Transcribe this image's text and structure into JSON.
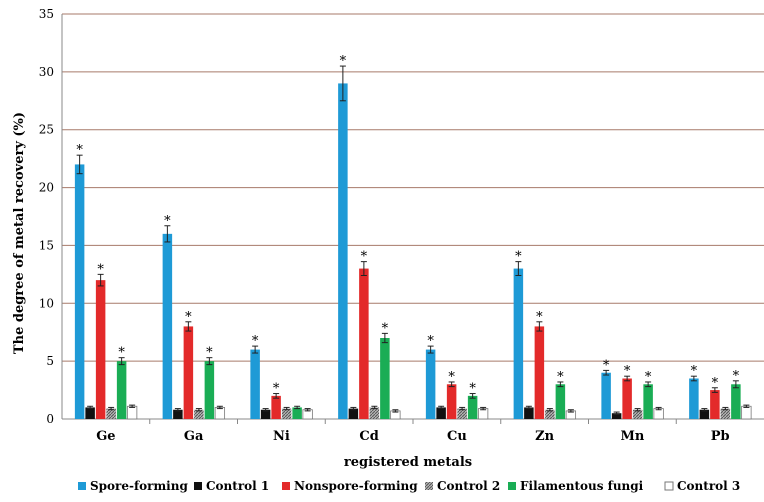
{
  "chart_data": {
    "type": "bar",
    "xlabel": "registered metals",
    "ylabel": "The degree of metal recovery (%)",
    "ylim": [
      0,
      35
    ],
    "yticks": [
      0,
      5,
      10,
      15,
      20,
      25,
      30,
      35
    ],
    "grid": true,
    "legend_position": "bottom",
    "categories": [
      "Ge",
      "Ga",
      "Ni",
      "Cd",
      "Cu",
      "Zn",
      "Mn",
      "Pb"
    ],
    "series": [
      {
        "name": "Spore-forming",
        "color": "#1e9ad6",
        "pattern": "solid",
        "values": [
          22,
          16,
          6,
          29,
          6,
          13,
          4,
          3.5
        ],
        "errors": [
          0.8,
          0.7,
          0.3,
          1.5,
          0.3,
          0.6,
          0.2,
          0.2
        ],
        "significant": [
          true,
          true,
          true,
          true,
          true,
          true,
          true,
          true
        ]
      },
      {
        "name": "Control 1",
        "color": "#111111",
        "pattern": "solid",
        "values": [
          1.0,
          0.8,
          0.8,
          0.9,
          1.0,
          1.0,
          0.5,
          0.8
        ],
        "errors": [
          0.1,
          0.1,
          0.1,
          0.1,
          0.1,
          0.1,
          0.1,
          0.1
        ],
        "significant": [
          false,
          false,
          false,
          false,
          false,
          false,
          false,
          false
        ]
      },
      {
        "name": "Nonspore-forming",
        "color": "#e32a2a",
        "pattern": "solid",
        "values": [
          12,
          8,
          2,
          13,
          3,
          8,
          3.5,
          2.5
        ],
        "errors": [
          0.5,
          0.4,
          0.2,
          0.6,
          0.2,
          0.4,
          0.2,
          0.2
        ],
        "significant": [
          true,
          true,
          true,
          true,
          true,
          true,
          true,
          true
        ]
      },
      {
        "name": "Control 2",
        "color": "#8c8c8c",
        "pattern": "hatched",
        "values": [
          0.9,
          0.8,
          0.9,
          1.0,
          0.9,
          0.8,
          0.8,
          0.9
        ],
        "errors": [
          0.1,
          0.1,
          0.1,
          0.1,
          0.1,
          0.1,
          0.1,
          0.1
        ],
        "significant": [
          false,
          false,
          false,
          false,
          false,
          false,
          false,
          false
        ]
      },
      {
        "name": "Filamentous fungi",
        "color": "#1aad55",
        "pattern": "solid",
        "values": [
          5,
          5,
          1,
          7,
          2,
          3,
          3,
          3
        ],
        "errors": [
          0.3,
          0.3,
          0.1,
          0.4,
          0.2,
          0.2,
          0.2,
          0.3
        ],
        "significant": [
          true,
          true,
          false,
          true,
          true,
          true,
          true,
          true
        ]
      },
      {
        "name": "Control 3",
        "color": "#ffffff",
        "pattern": "outline",
        "values": [
          1.1,
          1.0,
          0.8,
          0.7,
          0.9,
          0.7,
          0.9,
          1.1
        ],
        "errors": [
          0.1,
          0.1,
          0.1,
          0.1,
          0.1,
          0.1,
          0.1,
          0.1
        ],
        "significant": [
          false,
          false,
          false,
          false,
          false,
          false,
          false,
          false
        ]
      }
    ],
    "significance_marker": "*"
  }
}
